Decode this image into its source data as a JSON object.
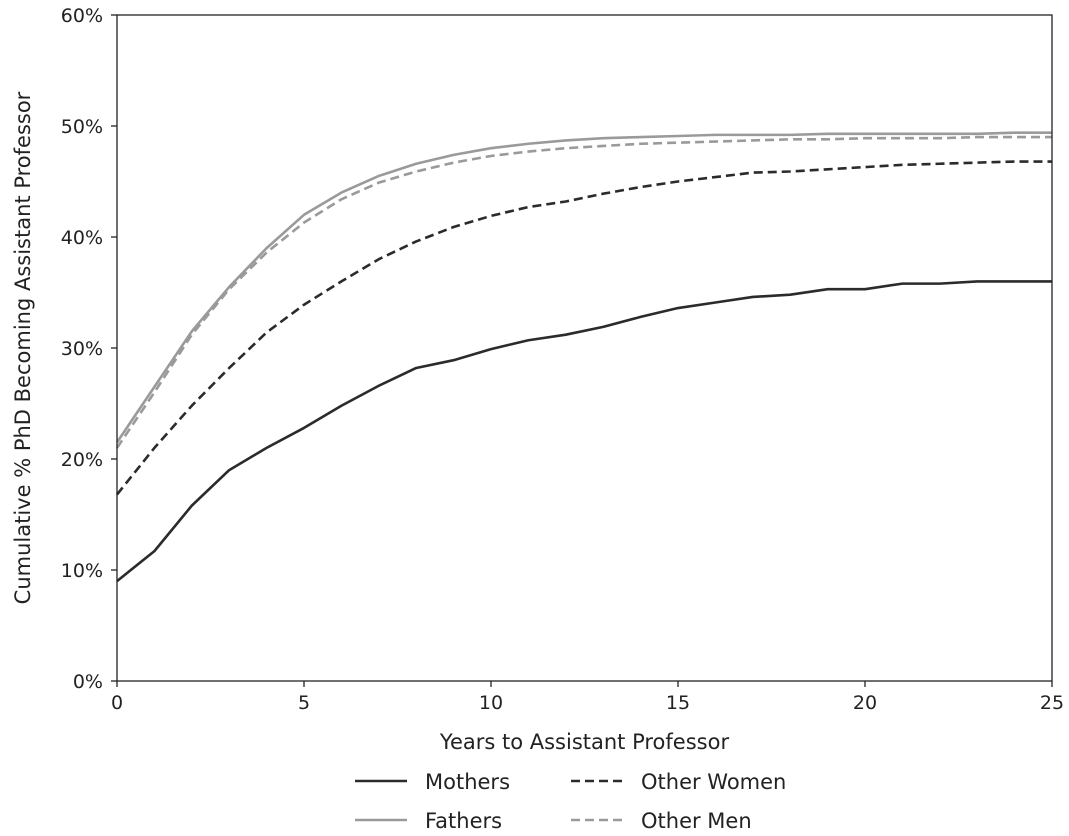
{
  "chart_data": {
    "type": "line",
    "title": "",
    "xlabel": "Years to Assistant Professor",
    "ylabel": "Cumulative % PhD Becoming Assistant Professor",
    "xlim": [
      0,
      25
    ],
    "ylim": [
      0,
      60
    ],
    "xticks": [
      0,
      5,
      10,
      15,
      20,
      25
    ],
    "xtick_labels": [
      "0",
      "5",
      "10",
      "15",
      "20",
      "25"
    ],
    "yticks": [
      0,
      10,
      20,
      30,
      40,
      50,
      60
    ],
    "ytick_labels": [
      "0%",
      "10%",
      "20%",
      "30%",
      "40%",
      "50%",
      "60%"
    ],
    "grid": false,
    "legend_position": "bottom-center",
    "x": [
      0,
      1,
      2,
      3,
      4,
      5,
      6,
      7,
      8,
      9,
      10,
      11,
      12,
      13,
      14,
      15,
      16,
      17,
      18,
      19,
      20,
      21,
      22,
      23,
      24,
      25
    ],
    "series": [
      {
        "name": "Mothers",
        "color": "#2b2b2b",
        "dash": "solid",
        "values": [
          9.0,
          11.7,
          15.8,
          19.0,
          21.0,
          22.8,
          24.8,
          26.6,
          28.2,
          28.9,
          29.9,
          30.7,
          31.2,
          31.9,
          32.8,
          33.6,
          34.1,
          34.6,
          34.8,
          35.3,
          35.3,
          35.8,
          35.8,
          36.0,
          36.0,
          36.0
        ]
      },
      {
        "name": "Fathers",
        "color": "#9a9a9a",
        "dash": "solid",
        "values": [
          21.5,
          26.5,
          31.5,
          35.5,
          39.0,
          42.0,
          44.0,
          45.5,
          46.6,
          47.4,
          48.0,
          48.4,
          48.7,
          48.9,
          49.0,
          49.1,
          49.2,
          49.2,
          49.2,
          49.3,
          49.3,
          49.3,
          49.3,
          49.3,
          49.4,
          49.4
        ]
      },
      {
        "name": "Other Women",
        "color": "#2b2b2b",
        "dash": "dashed",
        "values": [
          16.8,
          21.0,
          24.8,
          28.2,
          31.4,
          33.9,
          36.0,
          38.0,
          39.6,
          40.9,
          41.9,
          42.7,
          43.2,
          43.9,
          44.5,
          45.0,
          45.4,
          45.8,
          45.9,
          46.1,
          46.3,
          46.5,
          46.6,
          46.7,
          46.8,
          46.8
        ]
      },
      {
        "name": "Other Men",
        "color": "#9a9a9a",
        "dash": "dashed",
        "values": [
          21.0,
          26.0,
          31.2,
          35.3,
          38.6,
          41.3,
          43.4,
          44.9,
          45.9,
          46.7,
          47.3,
          47.7,
          48.0,
          48.2,
          48.4,
          48.5,
          48.6,
          48.7,
          48.8,
          48.8,
          48.9,
          48.9,
          48.9,
          49.0,
          49.0,
          49.0
        ]
      }
    ]
  }
}
